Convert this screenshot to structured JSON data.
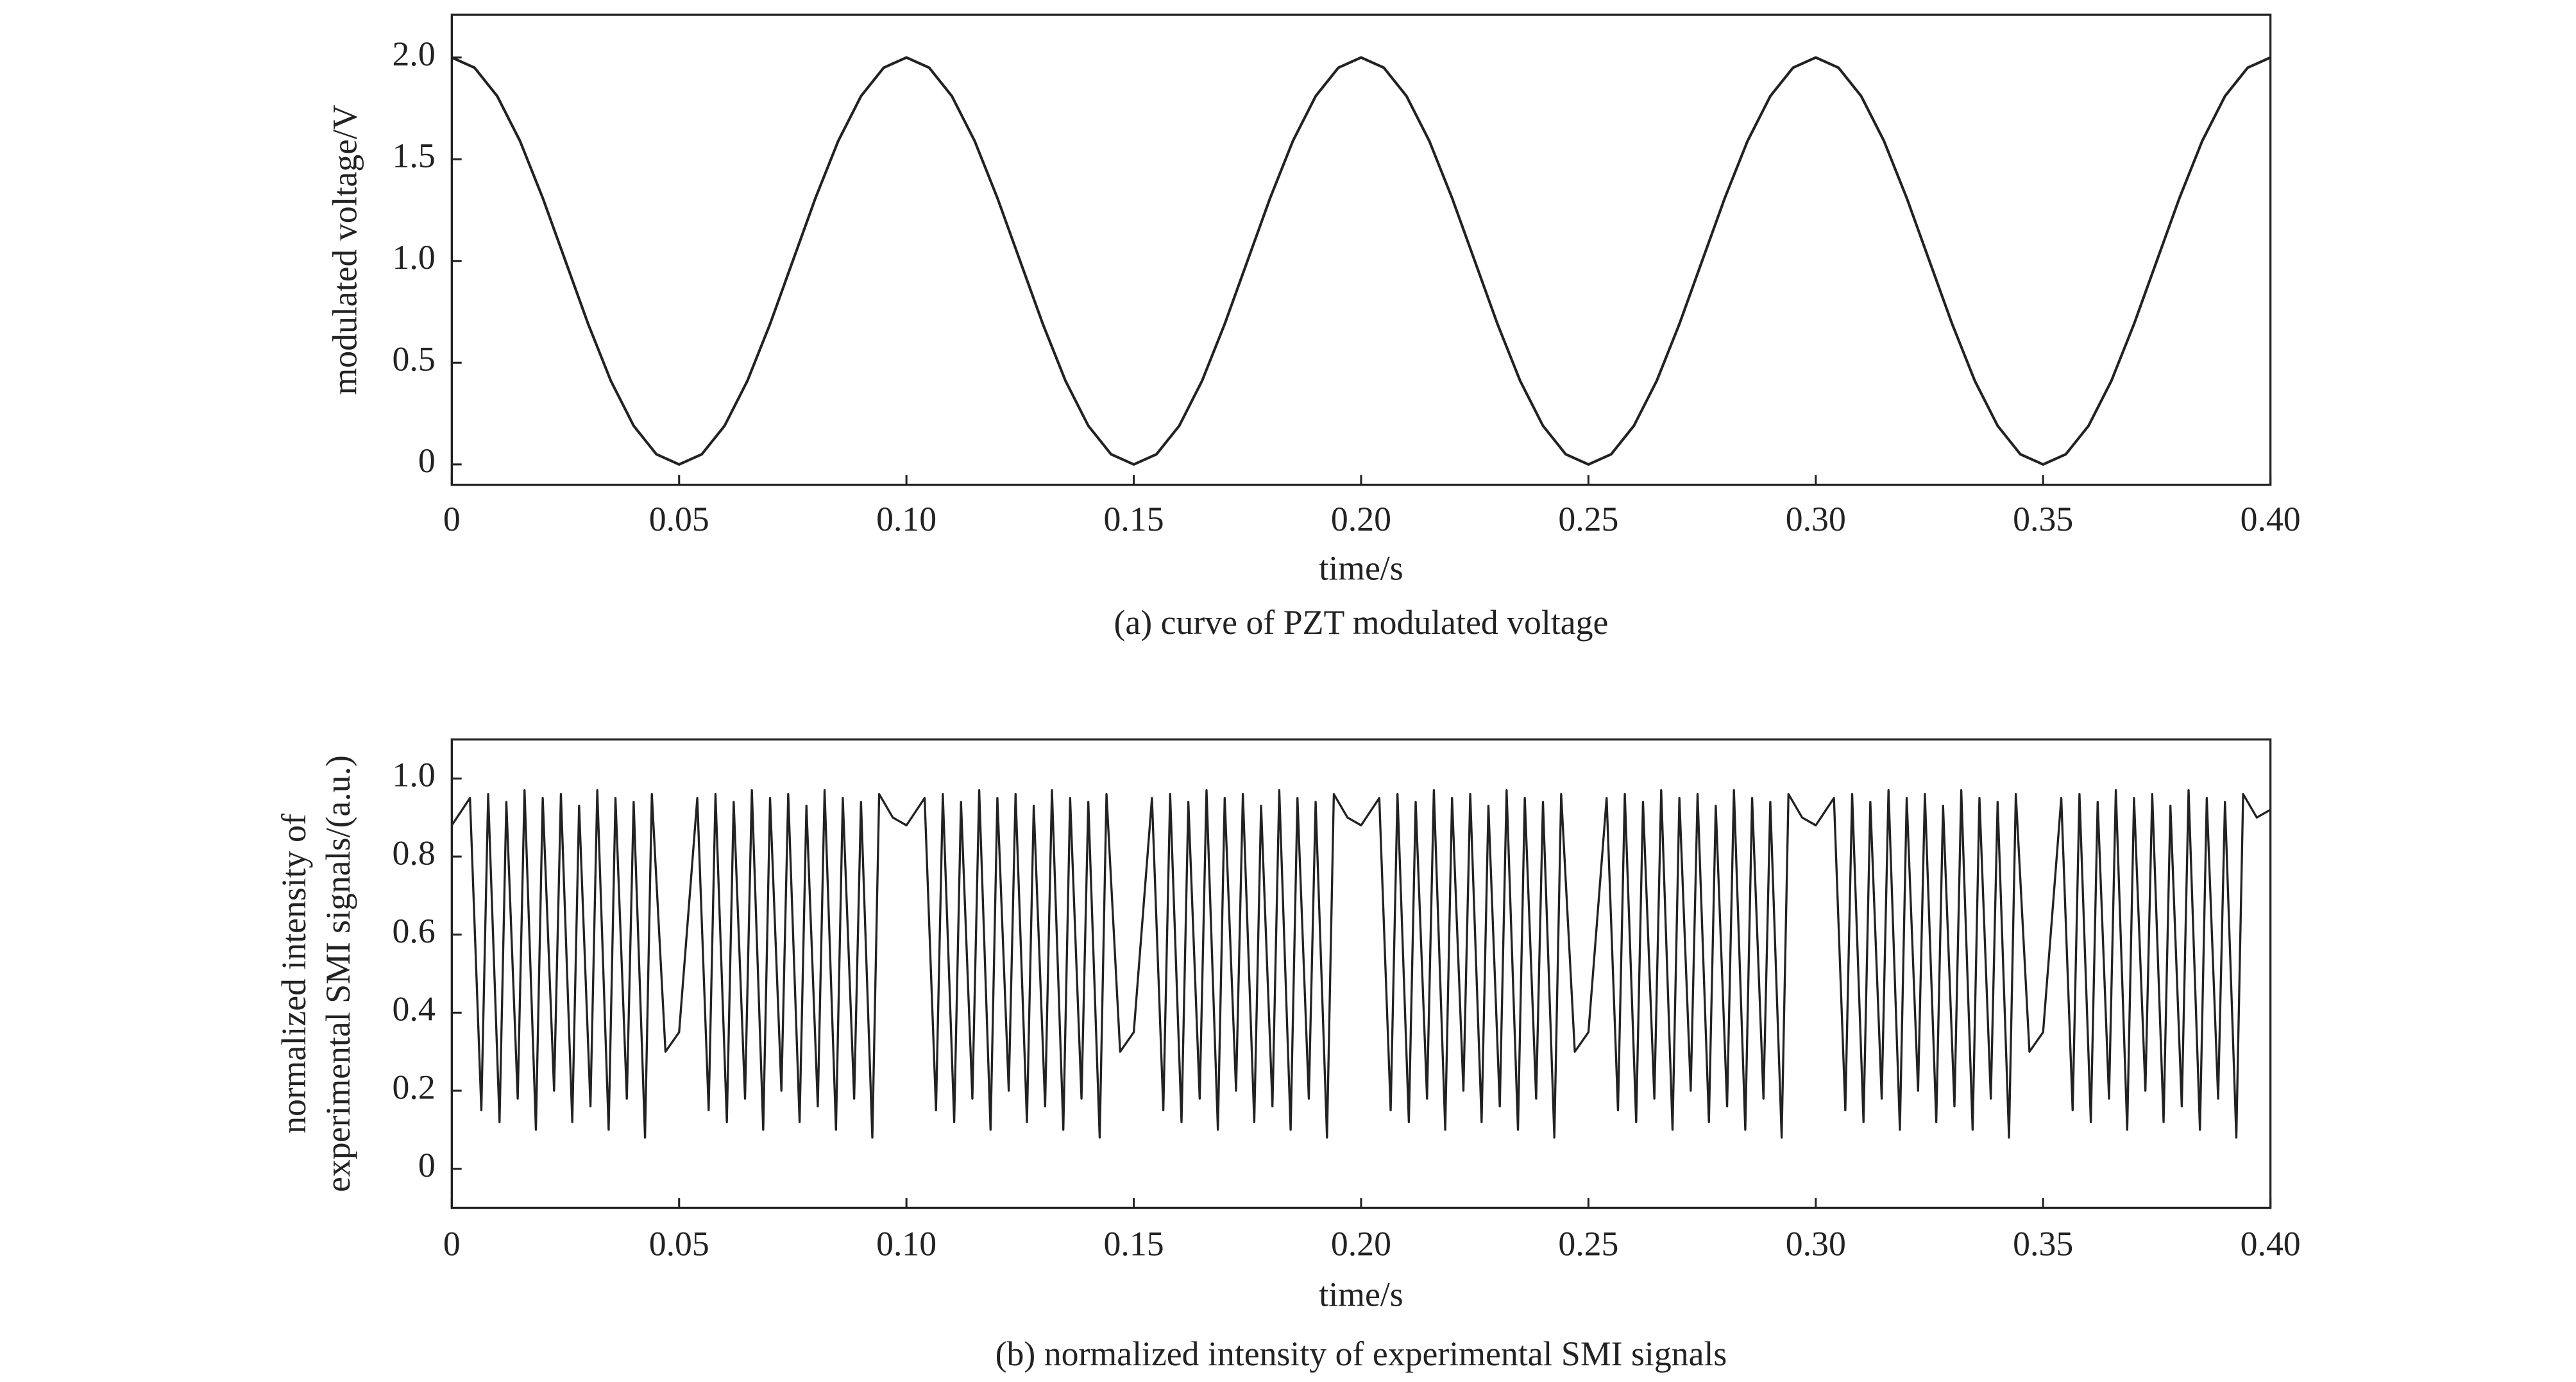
{
  "chart_data": [
    {
      "type": "line",
      "xlabel": "time/s",
      "ylabel": [
        "modulated voltage/V"
      ],
      "caption": "(a) curve of PZT modulated voltage",
      "xlim": [
        0,
        0.4
      ],
      "ylim": [
        -0.1,
        2.21
      ],
      "xticks": [
        0,
        0.05,
        {
          "value": 0.1,
          "label": "0.10"
        },
        0.15,
        {
          "value": 0.2,
          "label": "0.20"
        },
        0.25,
        {
          "value": 0.3,
          "label": "0.30"
        },
        0.35,
        {
          "value": 0.4,
          "label": "0.40"
        }
      ],
      "yticks": [
        0,
        0.5,
        {
          "value": 1,
          "label": "1.0"
        },
        1.5,
        {
          "value": 2,
          "label": "2.0"
        }
      ],
      "series": [
        {
          "color": "#222222",
          "x": [
            0,
            0.005,
            0.01,
            0.015,
            0.02,
            0.025,
            0.03,
            0.035,
            0.04,
            0.045,
            0.05,
            0.055,
            0.06,
            0.065,
            0.07,
            0.075,
            0.08,
            0.085,
            0.09,
            0.095,
            0.1,
            0.105,
            0.11,
            0.115,
            0.12,
            0.125,
            0.13,
            0.135,
            0.14,
            0.145,
            0.15,
            0.155,
            0.16,
            0.165,
            0.17,
            0.175,
            0.18,
            0.185,
            0.19,
            0.195,
            0.2,
            0.205,
            0.21,
            0.215,
            0.22,
            0.225,
            0.23,
            0.235,
            0.24,
            0.245,
            0.25,
            0.255,
            0.26,
            0.265,
            0.27,
            0.275,
            0.28,
            0.285,
            0.29,
            0.295,
            0.3,
            0.305,
            0.31,
            0.315,
            0.32,
            0.325,
            0.33,
            0.335,
            0.34,
            0.345,
            0.35,
            0.355,
            0.36,
            0.365,
            0.37,
            0.375,
            0.38,
            0.385,
            0.39,
            0.395,
            0.4
          ],
          "values": [
            2,
            1.95,
            1.81,
            1.59,
            1.31,
            1,
            0.69,
            0.41,
            0.19,
            0.05,
            0,
            0.05,
            0.19,
            0.41,
            0.69,
            1,
            1.31,
            1.59,
            1.81,
            1.95,
            2,
            1.95,
            1.81,
            1.59,
            1.31,
            1,
            0.69,
            0.41,
            0.19,
            0.05,
            0,
            0.05,
            0.19,
            0.41,
            0.69,
            1,
            1.31,
            1.59,
            1.81,
            1.95,
            2,
            1.95,
            1.81,
            1.59,
            1.31,
            1,
            0.69,
            0.41,
            0.19,
            0.05,
            0,
            0.05,
            0.19,
            0.41,
            0.69,
            1,
            1.31,
            1.59,
            1.81,
            1.95,
            2,
            1.95,
            1.81,
            1.59,
            1.31,
            1,
            0.69,
            0.41,
            0.19,
            0.05,
            0,
            0.05,
            0.19,
            0.41,
            0.69,
            1,
            1.31,
            1.59,
            1.81,
            1.95,
            2
          ]
        }
      ]
    },
    {
      "type": "line",
      "xlabel": "time/s",
      "ylabel": [
        "normalized intensity of",
        "experimental SMI signals/(a.u.)"
      ],
      "caption": "(b) normalized intensity of experimental SMI signals",
      "xlim": [
        0,
        0.4
      ],
      "ylim": [
        -0.1,
        1.1
      ],
      "xticks": [
        0,
        0.05,
        {
          "value": 0.1,
          "label": "0.10"
        },
        0.15,
        {
          "value": 0.2,
          "label": "0.20"
        },
        0.25,
        {
          "value": 0.3,
          "label": "0.30"
        },
        0.35,
        {
          "value": 0.4,
          "label": "0.40"
        }
      ],
      "yticks": [
        0,
        0.2,
        0.4,
        0.6,
        0.8,
        {
          "value": 1,
          "label": "1.0"
        }
      ],
      "series": [
        {
          "color": "#222222",
          "x": [
            0,
            0.004,
            0.0065,
            0.008,
            0.0105,
            0.012,
            0.0145,
            0.016,
            0.0185,
            0.02,
            0.0225,
            0.024,
            0.0265,
            0.028,
            0.0305,
            0.032,
            0.0345,
            0.036,
            0.0385,
            0.04,
            0.0425,
            0.044,
            0.047,
            0.05,
            0.054,
            0.0565,
            0.058,
            0.0605,
            0.062,
            0.0645,
            0.066,
            0.0685,
            0.07,
            0.0725,
            0.074,
            0.0765,
            0.078,
            0.0805,
            0.082,
            0.0845,
            0.086,
            0.0885,
            0.09,
            0.0925,
            0.094,
            0.097,
            0.1,
            0.104,
            0.1065,
            0.108,
            0.1105,
            0.112,
            0.1145,
            0.116,
            0.1185,
            0.12,
            0.1225,
            0.124,
            0.1265,
            0.128,
            0.1305,
            0.132,
            0.1345,
            0.136,
            0.1385,
            0.14,
            0.1425,
            0.144,
            0.147,
            0.15,
            0.154,
            0.1565,
            0.158,
            0.1605,
            0.162,
            0.1645,
            0.166,
            0.1685,
            0.17,
            0.1725,
            0.174,
            0.1765,
            0.178,
            0.1805,
            0.182,
            0.1845,
            0.186,
            0.1885,
            0.19,
            0.1925,
            0.194,
            0.197,
            0.2,
            0.204,
            0.2065,
            0.208,
            0.2105,
            0.212,
            0.2145,
            0.216,
            0.2185,
            0.22,
            0.2225,
            0.224,
            0.2265,
            0.228,
            0.2305,
            0.232,
            0.2345,
            0.236,
            0.2385,
            0.24,
            0.2425,
            0.244,
            0.247,
            0.25,
            0.254,
            0.2565,
            0.258,
            0.2605,
            0.262,
            0.2645,
            0.266,
            0.2685,
            0.27,
            0.2725,
            0.274,
            0.2765,
            0.278,
            0.2805,
            0.282,
            0.2845,
            0.286,
            0.2885,
            0.29,
            0.2925,
            0.294,
            0.297,
            0.3,
            0.304,
            0.3065,
            0.308,
            0.3105,
            0.312,
            0.3145,
            0.316,
            0.3185,
            0.32,
            0.3225,
            0.324,
            0.3265,
            0.328,
            0.3305,
            0.332,
            0.3345,
            0.336,
            0.3385,
            0.34,
            0.3425,
            0.344,
            0.347,
            0.35,
            0.354,
            0.3565,
            0.358,
            0.3605,
            0.362,
            0.3645,
            0.366,
            0.3685,
            0.37,
            0.3725,
            0.374,
            0.3765,
            0.378,
            0.3805,
            0.382,
            0.3845,
            0.386,
            0.3885,
            0.39,
            0.3925,
            0.394,
            0.397,
            0.4
          ],
          "values": [
            0.88,
            0.95,
            0.15,
            0.96,
            0.12,
            0.94,
            0.18,
            0.97,
            0.1,
            0.95,
            0.2,
            0.96,
            0.12,
            0.93,
            0.16,
            0.97,
            0.1,
            0.95,
            0.18,
            0.94,
            0.08,
            0.96,
            0.3,
            0.35,
            0.95,
            0.15,
            0.96,
            0.12,
            0.94,
            0.18,
            0.97,
            0.1,
            0.95,
            0.2,
            0.96,
            0.12,
            0.93,
            0.16,
            0.97,
            0.1,
            0.95,
            0.18,
            0.94,
            0.08,
            0.96,
            0.9,
            0.88,
            0.95,
            0.15,
            0.96,
            0.12,
            0.94,
            0.18,
            0.97,
            0.1,
            0.95,
            0.2,
            0.96,
            0.12,
            0.93,
            0.16,
            0.97,
            0.1,
            0.95,
            0.18,
            0.94,
            0.08,
            0.96,
            0.3,
            0.35,
            0.95,
            0.15,
            0.96,
            0.12,
            0.94,
            0.18,
            0.97,
            0.1,
            0.95,
            0.2,
            0.96,
            0.12,
            0.93,
            0.16,
            0.97,
            0.1,
            0.95,
            0.18,
            0.94,
            0.08,
            0.96,
            0.9,
            0.88,
            0.95,
            0.15,
            0.96,
            0.12,
            0.94,
            0.18,
            0.97,
            0.1,
            0.95,
            0.2,
            0.96,
            0.12,
            0.93,
            0.16,
            0.97,
            0.1,
            0.95,
            0.18,
            0.94,
            0.08,
            0.96,
            0.3,
            0.35,
            0.95,
            0.15,
            0.96,
            0.12,
            0.94,
            0.18,
            0.97,
            0.1,
            0.95,
            0.2,
            0.96,
            0.12,
            0.93,
            0.16,
            0.97,
            0.1,
            0.95,
            0.18,
            0.94,
            0.08,
            0.96,
            0.9,
            0.88,
            0.95,
            0.15,
            0.96,
            0.12,
            0.94,
            0.18,
            0.97,
            0.1,
            0.95,
            0.2,
            0.96,
            0.12,
            0.93,
            0.16,
            0.97,
            0.1,
            0.95,
            0.18,
            0.94,
            0.08,
            0.96,
            0.3,
            0.35,
            0.95,
            0.15,
            0.96,
            0.12,
            0.94,
            0.18,
            0.97,
            0.1,
            0.95,
            0.2,
            0.96,
            0.12,
            0.93,
            0.16,
            0.97,
            0.1,
            0.95,
            0.18,
            0.94,
            0.08,
            0.96,
            0.9,
            0.92
          ]
        }
      ]
    }
  ]
}
